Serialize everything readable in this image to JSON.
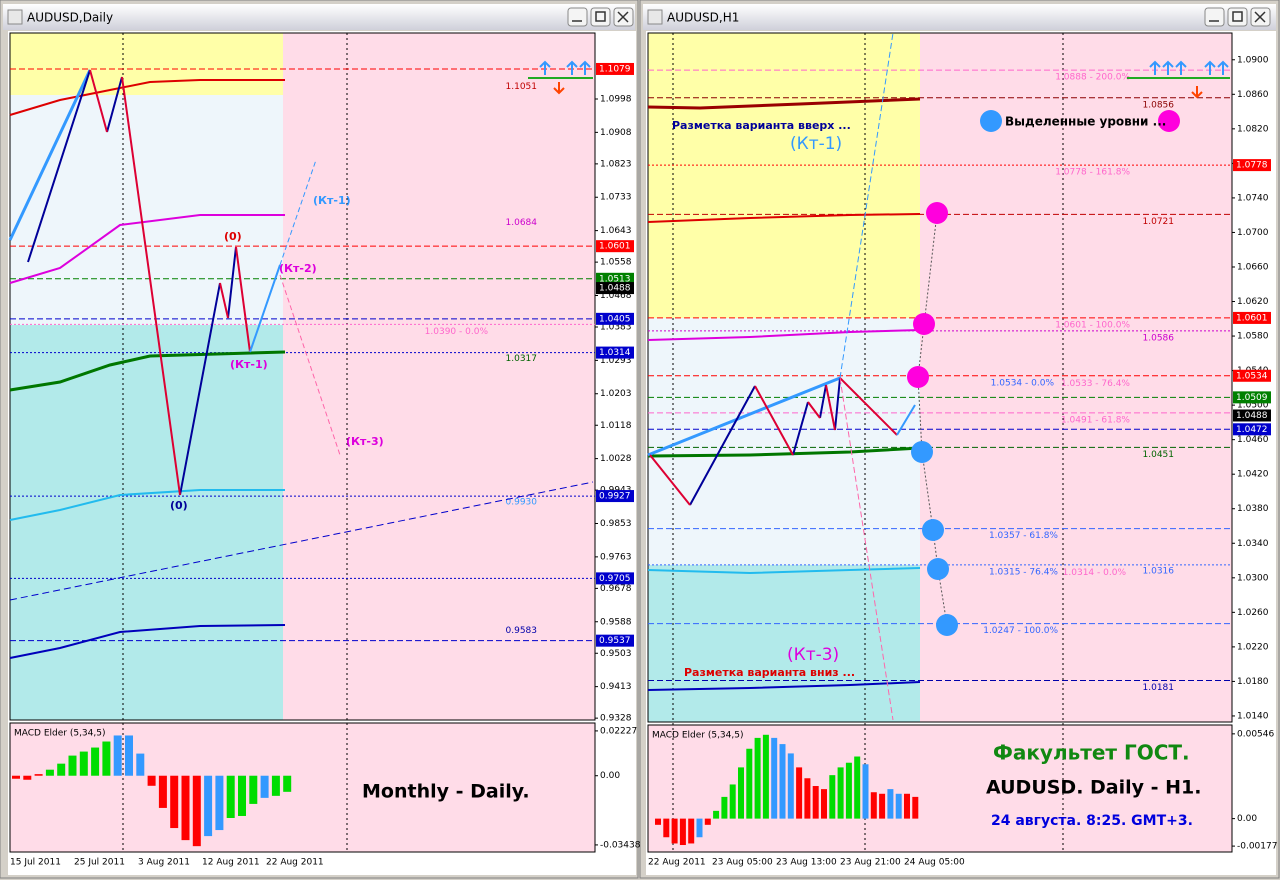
{
  "windows": [
    {
      "title": "AUDUSD,Daily",
      "ylim": [
        0.9323,
        1.1176
      ],
      "yticks": [
        1.0998,
        1.0908,
        1.0823,
        1.0733,
        1.0643,
        1.0558,
        1.0468,
        1.0383,
        1.0293,
        1.0203,
        1.0118,
        1.0028,
        0.9943,
        0.9853,
        0.9763,
        0.9678,
        0.9588,
        0.9503,
        0.9413,
        0.9328
      ],
      "tags": [
        {
          "value": 1.1079,
          "color": "#ff0000",
          "dash": "dashed"
        },
        {
          "value": 1.0601,
          "color": "#ff0000",
          "dash": "dashed"
        },
        {
          "value": 1.0513,
          "color": "#008000",
          "dash": "dashed"
        },
        {
          "value": 1.0488,
          "color": "#000000",
          "dash": "none"
        },
        {
          "value": 1.0405,
          "color": "#0000cc",
          "dash": "dashed"
        },
        {
          "value": 1.0314,
          "color": "#0000cc",
          "dash": "dotted"
        },
        {
          "value": 0.9927,
          "color": "#0000cc",
          "dash": "dotted"
        },
        {
          "value": 0.9705,
          "color": "#0000cc",
          "dash": "dotted"
        },
        {
          "value": 0.9537,
          "color": "#0000cc",
          "dash": "dashed"
        }
      ],
      "labels": [
        {
          "value": 1.1051,
          "color": "#c00000"
        },
        {
          "value": 1.0684,
          "color": "#cc00cc"
        },
        {
          "value": 1.039,
          "label": "1.0390 - 0.0%",
          "color": "#ff66cc",
          "dash": "dotted"
        },
        {
          "value": 1.0317,
          "color": "#006400"
        },
        {
          "value": 0.993,
          "label": "0.9930",
          "color": "#3399ff"
        },
        {
          "value": 0.9583,
          "color": "#0000aa"
        }
      ],
      "annotations": [
        "(Кт-1)",
        "(0)",
        "(Кт-2)",
        "(Кт-1)",
        "(Кт-3)",
        "(0)",
        "Monthly - Daily."
      ],
      "x_labels": [
        "15 Jul 2011",
        "25 Jul 2011",
        "3 Aug 2011",
        "12 Aug 2011",
        "22 Aug 2011"
      ],
      "macd": {
        "label": "MACD Elder (5,34,5)",
        "ylim": [
          -0.0379,
          0.0262
        ],
        "yticks": [
          0.02227,
          {
            "value": 0,
            "label": "0.00"
          },
          -0.03438
        ],
        "values": [
          -0.0015,
          -0.002,
          0.0008,
          0.003,
          0.006,
          0.01,
          0.012,
          0.014,
          0.017,
          0.02,
          0.02,
          0.011,
          -0.005,
          -0.016,
          -0.026,
          -0.032,
          -0.035,
          -0.03,
          -0.027,
          -0.021,
          -0.02,
          -0.014,
          -0.011,
          -0.01,
          -0.008
        ],
        "colors": [
          "#ff0000",
          "#ff0000",
          "#ff0000",
          "#00dd00",
          "#00dd00",
          "#00dd00",
          "#00dd00",
          "#00dd00",
          "#00dd00",
          "#3399ff",
          "#3399ff",
          "#3399ff",
          "#ff0000",
          "#ff0000",
          "#ff0000",
          "#ff0000",
          "#ff0000",
          "#3399ff",
          "#3399ff",
          "#00dd00",
          "#00dd00",
          "#00dd00",
          "#3399ff",
          "#00dd00",
          "#00dd00"
        ]
      }
    },
    {
      "title": "AUDUSD,H1",
      "ylim": [
        1.0133,
        1.0931
      ],
      "yticks": [
        {
          "value": 1.09,
          "label": "1.0900"
        },
        {
          "value": 1.086,
          "label": "1.0860"
        },
        {
          "value": 1.082,
          "label": "1.0820"
        },
        {
          "value": 1.078,
          "label": "1.0780"
        },
        {
          "value": 1.074,
          "label": "1.0740"
        },
        {
          "value": 1.07,
          "label": "1.0700"
        },
        {
          "value": 1.066,
          "label": "1.0660"
        },
        {
          "value": 1.062,
          "label": "1.0620"
        },
        {
          "value": 1.058,
          "label": "1.0580"
        },
        {
          "value": 1.054,
          "label": "1.0540"
        },
        {
          "value": 1.05,
          "label": "1.0500"
        },
        {
          "value": 1.046,
          "label": "1.0460"
        },
        {
          "value": 1.042,
          "label": "1.0420"
        },
        {
          "value": 1.038,
          "label": "1.0380"
        },
        {
          "value": 1.034,
          "label": "1.0340"
        },
        {
          "value": 1.03,
          "label": "1.0300"
        },
        {
          "value": 1.026,
          "label": "1.0260"
        },
        {
          "value": 1.022,
          "label": "1.0220"
        },
        {
          "value": 1.018,
          "label": "1.0180"
        },
        {
          "value": 1.014,
          "label": "1.0140"
        }
      ],
      "tags": [
        {
          "value": 1.0778,
          "color": "#ff0000",
          "dash": "dotted"
        },
        {
          "value": 1.0601,
          "color": "#ff0000",
          "dash": "dashed"
        },
        {
          "value": 1.0534,
          "color": "#ff0000",
          "dash": "dashed"
        },
        {
          "value": 1.0509,
          "color": "#008000",
          "dash": "dashed"
        },
        {
          "value": 1.0488,
          "color": "#000000",
          "dash": "none"
        },
        {
          "value": 1.0472,
          "color": "#0000cc",
          "dash": "dashed"
        }
      ],
      "labels": [
        {
          "value": 1.0888,
          "label": "1.0888 - 200.0%",
          "color": "#ff66cc",
          "dash": "dashed"
        },
        {
          "value": 1.0856,
          "color": "#8b0000",
          "dash": "dashed"
        },
        {
          "value": 1.0778,
          "label": "1.0778 - 161.8%",
          "color": "#ff66cc"
        },
        {
          "value": 1.0721,
          "color": "#c00000",
          "dash": "dashed"
        },
        {
          "value": 1.0601,
          "label": "1.0601 - 100.0%",
          "color": "#ff66cc"
        },
        {
          "value": 1.0586,
          "color": "#cc00cc",
          "dash": "dotted"
        },
        {
          "value": 1.0534,
          "label": "1.0534 - 0.0%",
          "color": "#3366ff"
        },
        {
          "value": 1.0533,
          "label": "1.0533 - 76.4%",
          "color": "#ff66cc"
        },
        {
          "value": 1.0491,
          "label": "1.0491 - 61.8%",
          "color": "#ff66cc",
          "dash": "dashed"
        },
        {
          "value": 1.0451,
          "color": "#006400",
          "dash": "dashed"
        },
        {
          "value": 1.0357,
          "label": "1.0357 - 61.8%",
          "color": "#3366ff",
          "dash": "dashed"
        },
        {
          "value": 1.0315,
          "label": "1.0315 - 76.4%",
          "color": "#3366ff",
          "dash": "dotted"
        },
        {
          "value": 1.0314,
          "label": "1.0314 - 0.0%",
          "color": "#ff66cc"
        },
        {
          "value": 1.0316,
          "color": "#3366ff"
        },
        {
          "value": 1.0247,
          "label": "1.0247 - 100.0%",
          "color": "#3366ff",
          "dash": "dashed"
        },
        {
          "value": 1.0181,
          "color": "#0000aa",
          "dash": "dashed"
        }
      ],
      "annotations": [
        "Разметка варианта вверх ...",
        "(Кт-1)",
        "Выделенные уровни ...",
        "(Кт-3)",
        "Разметка варианта вниз ...",
        "Факультет ГОСТ.",
        "AUDUSD. Daily - H1.",
        "24 августа. 8:25. GMT+3."
      ],
      "x_labels": [
        "22 Aug 2011",
        "23 Aug 05:00",
        "23 Aug 13:00",
        "23 Aug 21:00",
        "24 Aug 05:00"
      ],
      "macd": {
        "label": "MACD Elder (5,34,5)",
        "ylim": [
          -0.00215,
          0.00603
        ],
        "yticks": [
          0.00546,
          {
            "value": 0,
            "label": "0.00"
          },
          -0.00177
        ],
        "values": [
          -0.0004,
          -0.0012,
          -0.0016,
          -0.0017,
          -0.0016,
          -0.0012,
          -0.0004,
          0.0005,
          0.0014,
          0.0022,
          0.0033,
          0.0045,
          0.0052,
          0.0054,
          0.0052,
          0.0048,
          0.0042,
          0.0033,
          0.0026,
          0.0021,
          0.0019,
          0.0028,
          0.0033,
          0.0036,
          0.004,
          0.0035,
          0.0017,
          0.0016,
          0.0019,
          0.0016,
          0.0016,
          0.0014
        ],
        "colors": [
          "#ff0000",
          "#ff0000",
          "#ff0000",
          "#ff0000",
          "#ff0000",
          "#3399ff",
          "#ff0000",
          "#00dd00",
          "#00dd00",
          "#00dd00",
          "#00dd00",
          "#00dd00",
          "#00dd00",
          "#00dd00",
          "#3399ff",
          "#3399ff",
          "#3399ff",
          "#ff0000",
          "#ff0000",
          "#ff0000",
          "#ff0000",
          "#00dd00",
          "#00dd00",
          "#00dd00",
          "#00dd00",
          "#3399ff",
          "#ff0000",
          "#ff0000",
          "#3399ff",
          "#3399ff",
          "#ff0000",
          "#ff0000"
        ]
      }
    }
  ]
}
